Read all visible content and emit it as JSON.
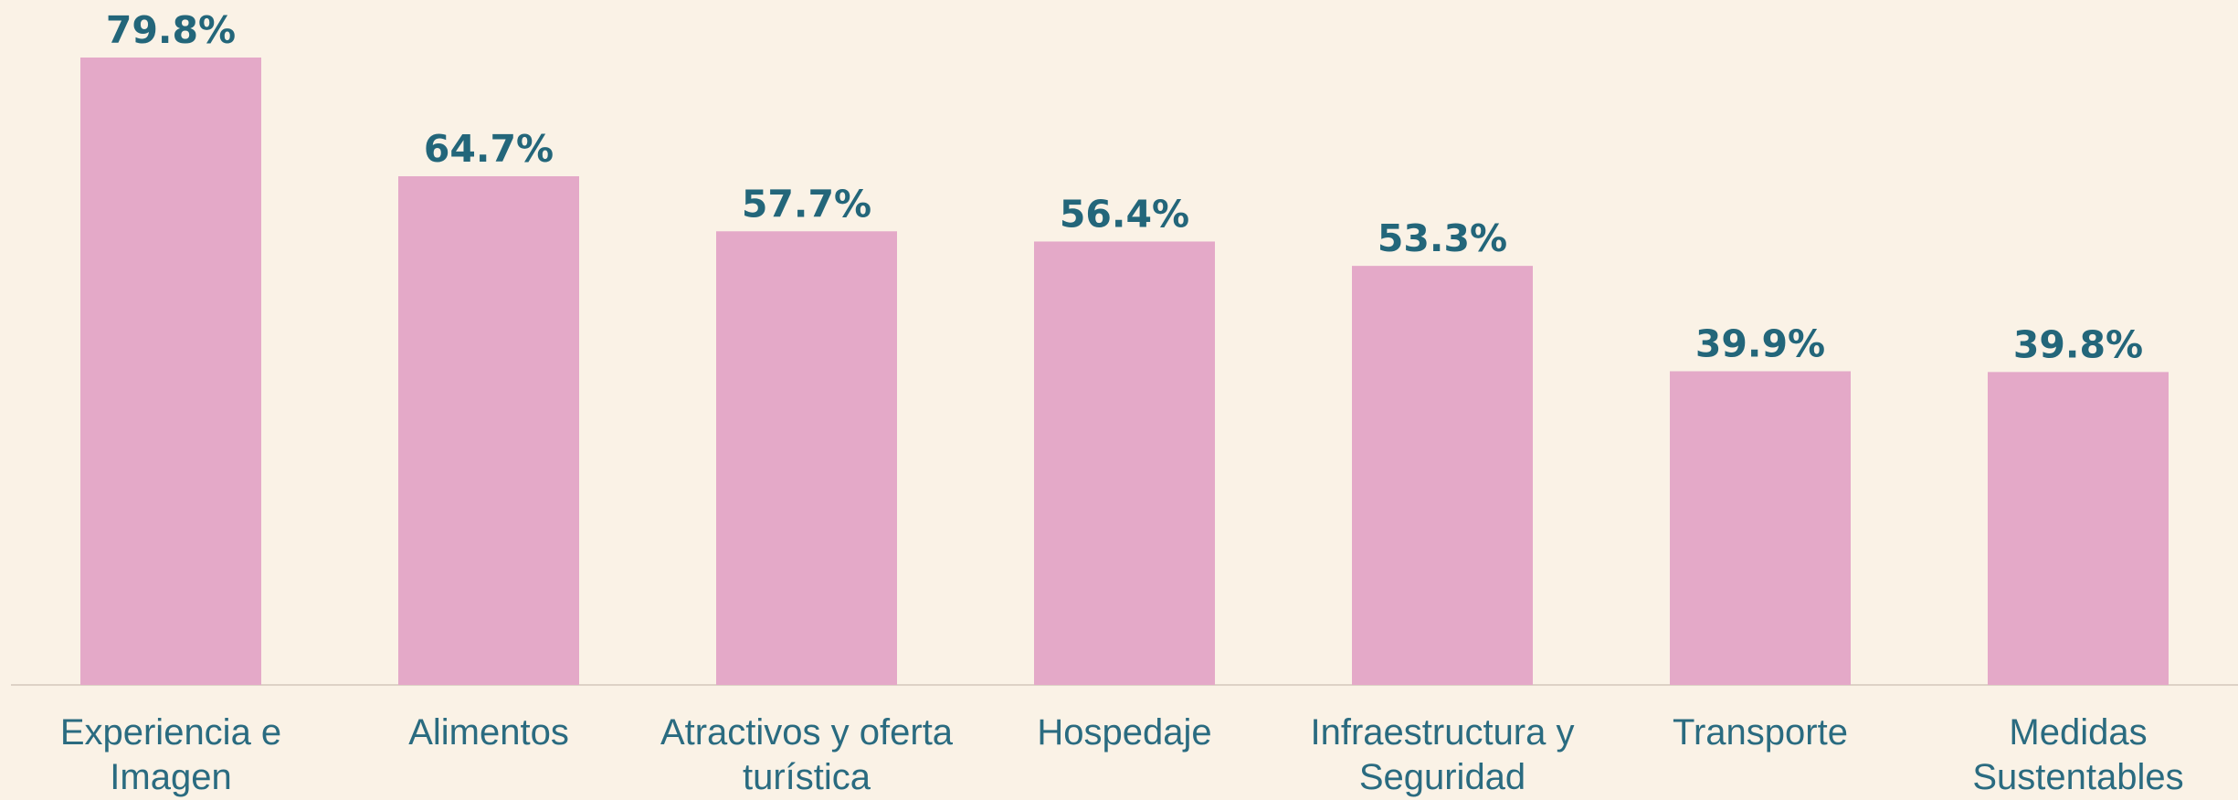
{
  "chart_data": {
    "type": "bar",
    "categories": [
      "Experiencia e Imagen",
      "Alimentos",
      "Atractivos y oferta turística",
      "Hospedaje",
      "Infraestructura y Seguridad",
      "Transporte",
      "Medidas Sustentables"
    ],
    "values": [
      79.8,
      64.7,
      57.7,
      56.4,
      53.3,
      39.9,
      39.8
    ],
    "value_labels": [
      "79.8%",
      "64.7%",
      "57.7%",
      "56.4%",
      "53.3%",
      "39.9%",
      "39.8%"
    ],
    "color": "#e4a9c8"
  }
}
